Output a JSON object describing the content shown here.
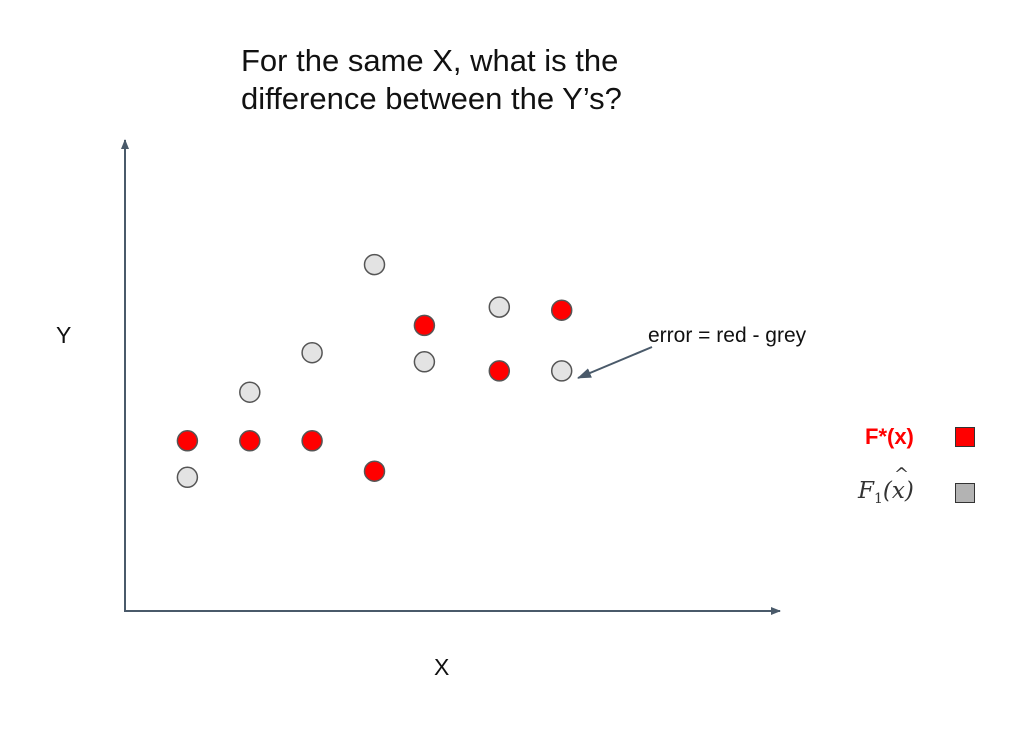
{
  "title": {
    "line1": "For the same X, what is the",
    "line2": "difference between the Y’s?"
  },
  "axes": {
    "ylabel": "Y",
    "xlabel": "X"
  },
  "annotation": "error = red - grey",
  "legend": [
    {
      "label": "F*(x)",
      "color": "#ff0000"
    },
    {
      "label": "F1(x) with hat",
      "color": "#b3b3b3"
    }
  ],
  "colors": {
    "red": "#ff0000",
    "grey": "#e3e3e3",
    "axis": "#4a5a6a",
    "outline": "#555555"
  },
  "chart_data": {
    "type": "scatter",
    "series": [
      {
        "name": "F*(x)",
        "color": "#ff0000",
        "points": [
          [
            1,
            3
          ],
          [
            2,
            3
          ],
          [
            3,
            3
          ],
          [
            4,
            2
          ],
          [
            4.8,
            6.8
          ],
          [
            6,
            5.3
          ],
          [
            7,
            7.3
          ]
        ]
      },
      {
        "name": "F1(x) with hat",
        "color": "#e3e3e3",
        "points": [
          [
            1,
            1.8
          ],
          [
            2,
            4.6
          ],
          [
            3,
            5.9
          ],
          [
            4,
            8.8
          ],
          [
            4.8,
            5.6
          ],
          [
            6,
            7.4
          ],
          [
            7,
            5.3
          ]
        ]
      }
    ],
    "xlim": [
      0,
      10.5
    ],
    "ylim": [
      -2.6,
      12.9
    ],
    "xlabel": "X",
    "ylabel": "Y",
    "grid": false
  }
}
